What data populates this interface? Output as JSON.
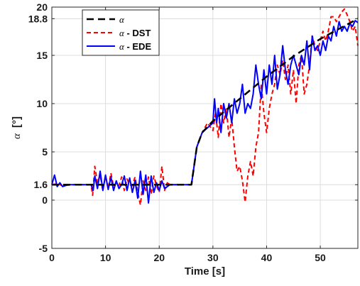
{
  "chart_data": {
    "type": "line",
    "xlabel": "Time [s]",
    "ylabel_symbol": "α",
    "ylabel_unit": "[°]",
    "xlim": [
      0,
      57
    ],
    "ylim": [
      -5,
      20
    ],
    "x_ticks": [
      0,
      10,
      20,
      30,
      40,
      50
    ],
    "y_ticks": [
      -5,
      0,
      1.6,
      5,
      10,
      15,
      18.8,
      20
    ],
    "grid": true,
    "legend_position": "top-left",
    "series": [
      {
        "name_symbol": "α",
        "name_suffix": "",
        "color": "#000000",
        "dash": "dashed",
        "points": [
          [
            0,
            1.6
          ],
          [
            26,
            1.6
          ],
          [
            27,
            5.5
          ],
          [
            28,
            7.0
          ],
          [
            30,
            8.2
          ],
          [
            35,
            10.5
          ],
          [
            40,
            12.8
          ],
          [
            45,
            14.9
          ],
          [
            50,
            16.7
          ],
          [
            55,
            18.2
          ],
          [
            57,
            18.8
          ]
        ]
      },
      {
        "name_symbol": "α",
        "name_suffix": " - DST",
        "color": "#ff0000",
        "dash": "dashed",
        "points": [
          [
            0,
            1.6
          ],
          [
            1,
            1.7
          ],
          [
            2,
            1.5
          ],
          [
            4,
            1.6
          ],
          [
            7.3,
            1.6
          ],
          [
            7.6,
            0.5
          ],
          [
            8,
            3.5
          ],
          [
            8.5,
            1.8
          ],
          [
            9,
            2.6
          ],
          [
            9.5,
            1.0
          ],
          [
            10,
            2.5
          ],
          [
            10.5,
            1.2
          ],
          [
            11,
            2.8
          ],
          [
            11.5,
            1.4
          ],
          [
            12,
            1.8
          ],
          [
            12.5,
            1.5
          ],
          [
            13,
            2.4
          ],
          [
            13.5,
            1.0
          ],
          [
            14,
            2.2
          ],
          [
            14.5,
            1.6
          ],
          [
            15,
            1.5
          ],
          [
            15.5,
            2.4
          ],
          [
            16,
            0.8
          ],
          [
            16.5,
            -0.5
          ],
          [
            17,
            2.0
          ],
          [
            17.5,
            1.0
          ],
          [
            18,
            2.4
          ],
          [
            18.5,
            0.6
          ],
          [
            19,
            2.5
          ],
          [
            19.5,
            1.5
          ],
          [
            20,
            0.8
          ],
          [
            20.5,
            3.5
          ],
          [
            21,
            1.0
          ],
          [
            21.5,
            1.8
          ],
          [
            22,
            1.6
          ],
          [
            26,
            1.6
          ],
          [
            27,
            5.5
          ],
          [
            28,
            7.0
          ],
          [
            29,
            8.0
          ],
          [
            30,
            7.2
          ],
          [
            30.5,
            9.0
          ],
          [
            31,
            6.5
          ],
          [
            31.5,
            10.0
          ],
          [
            32,
            8.0
          ],
          [
            32.5,
            9.5
          ],
          [
            33,
            6.5
          ],
          [
            33.5,
            8.5
          ],
          [
            34,
            5.5
          ],
          [
            34.5,
            3.0
          ],
          [
            35,
            3.5
          ],
          [
            35.5,
            2.0
          ],
          [
            36,
            -0.2
          ],
          [
            36.5,
            2.5
          ],
          [
            37,
            4.0
          ],
          [
            37.5,
            2.5
          ],
          [
            38,
            5.5
          ],
          [
            38.5,
            7.0
          ],
          [
            39,
            12.0
          ],
          [
            39.5,
            9.0
          ],
          [
            40,
            7.0
          ],
          [
            40.5,
            9.5
          ],
          [
            41,
            11.0
          ],
          [
            41.5,
            12.0
          ],
          [
            42,
            14.0
          ],
          [
            42.5,
            13.0
          ],
          [
            43,
            14.5
          ],
          [
            43.5,
            12.5
          ],
          [
            44,
            14.0
          ],
          [
            44.5,
            11.0
          ],
          [
            45,
            13.5
          ],
          [
            45.5,
            10.0
          ],
          [
            46,
            14.0
          ],
          [
            46.5,
            15.0
          ],
          [
            47,
            11.0
          ],
          [
            47.5,
            12.0
          ],
          [
            48,
            14.0
          ],
          [
            48.5,
            17.0
          ],
          [
            49,
            16.0
          ],
          [
            49.5,
            15.5
          ],
          [
            50,
            16.5
          ],
          [
            50.5,
            17.5
          ],
          [
            51,
            16.5
          ],
          [
            51.5,
            17.5
          ],
          [
            52,
            19.0
          ],
          [
            52.5,
            19.0
          ],
          [
            53,
            18.5
          ],
          [
            53.5,
            19.0
          ],
          [
            54,
            19.5
          ],
          [
            54.5,
            19.8
          ],
          [
            55,
            19.2
          ],
          [
            55.5,
            18.5
          ],
          [
            56,
            17.5
          ],
          [
            56.5,
            18.0
          ],
          [
            57,
            16.0
          ]
        ]
      },
      {
        "name_symbol": "α",
        "name_suffix": " - EDE",
        "color": "#0000ff",
        "dash": "solid",
        "points": [
          [
            0,
            1.6
          ],
          [
            0.5,
            2.6
          ],
          [
            1,
            1.4
          ],
          [
            1.5,
            1.8
          ],
          [
            2,
            1.4
          ],
          [
            3,
            1.6
          ],
          [
            4,
            1.6
          ],
          [
            7.3,
            1.6
          ],
          [
            7.7,
            1.0
          ],
          [
            8,
            2.5
          ],
          [
            8.5,
            1.2
          ],
          [
            9,
            3.0
          ],
          [
            9.5,
            1.0
          ],
          [
            10,
            2.6
          ],
          [
            10.5,
            1.1
          ],
          [
            11,
            2.4
          ],
          [
            11.5,
            1.0
          ],
          [
            12,
            2.0
          ],
          [
            12.5,
            1.2
          ],
          [
            13,
            1.6
          ],
          [
            13.5,
            2.5
          ],
          [
            14,
            1.0
          ],
          [
            14.5,
            2.3
          ],
          [
            15,
            0.8
          ],
          [
            15.5,
            2.0
          ],
          [
            16,
            0.2
          ],
          [
            16.5,
            3.0
          ],
          [
            17,
            0.6
          ],
          [
            17.5,
            2.6
          ],
          [
            18,
            -0.3
          ],
          [
            18.5,
            2.5
          ],
          [
            19,
            0.8
          ],
          [
            19.5,
            1.8
          ],
          [
            20,
            1.0
          ],
          [
            20.5,
            2.0
          ],
          [
            21,
            1.2
          ],
          [
            22,
            1.6
          ],
          [
            26,
            1.6
          ],
          [
            27,
            5.5
          ],
          [
            28,
            7.0
          ],
          [
            29,
            7.5
          ],
          [
            30,
            8.0
          ],
          [
            30.3,
            10.5
          ],
          [
            30.7,
            8.0
          ],
          [
            31,
            9.5
          ],
          [
            31.5,
            7.0
          ],
          [
            32,
            10.0
          ],
          [
            32.5,
            8.5
          ],
          [
            33,
            10.0
          ],
          [
            33.5,
            8.0
          ],
          [
            34,
            10.5
          ],
          [
            34.5,
            9.0
          ],
          [
            35,
            10.0
          ],
          [
            35.5,
            12.0
          ],
          [
            36,
            9.0
          ],
          [
            36.5,
            10.0
          ],
          [
            37,
            9.5
          ],
          [
            37.5,
            11.0
          ],
          [
            38,
            14.0
          ],
          [
            38.5,
            12.0
          ],
          [
            39,
            10.5
          ],
          [
            39.5,
            13.5
          ],
          [
            40,
            11.0
          ],
          [
            40.5,
            14.0
          ],
          [
            41,
            12.0
          ],
          [
            41.5,
            15.0
          ],
          [
            42,
            11.5
          ],
          [
            42.5,
            13.0
          ],
          [
            43,
            16.0
          ],
          [
            43.5,
            13.5
          ],
          [
            44,
            12.0
          ],
          [
            44.5,
            14.0
          ],
          [
            45,
            15.0
          ],
          [
            45.5,
            14.0
          ],
          [
            46,
            13.0
          ],
          [
            46.5,
            15.0
          ],
          [
            47,
            14.0
          ],
          [
            47.5,
            16.5
          ],
          [
            48,
            13.5
          ],
          [
            48.5,
            17.0
          ],
          [
            49,
            15.5
          ],
          [
            49.5,
            16.0
          ],
          [
            50,
            15.0
          ],
          [
            50.5,
            16.5
          ],
          [
            51,
            15.5
          ],
          [
            51.5,
            17.0
          ],
          [
            52,
            16.5
          ],
          [
            52.5,
            18.0
          ],
          [
            53,
            17.0
          ],
          [
            53.5,
            18.5
          ],
          [
            54,
            17.5
          ],
          [
            54.5,
            18.0
          ],
          [
            55,
            17.5
          ],
          [
            55.5,
            18.3
          ],
          [
            56,
            18.0
          ],
          [
            56.5,
            18.6
          ],
          [
            57,
            18.4
          ]
        ]
      }
    ]
  }
}
